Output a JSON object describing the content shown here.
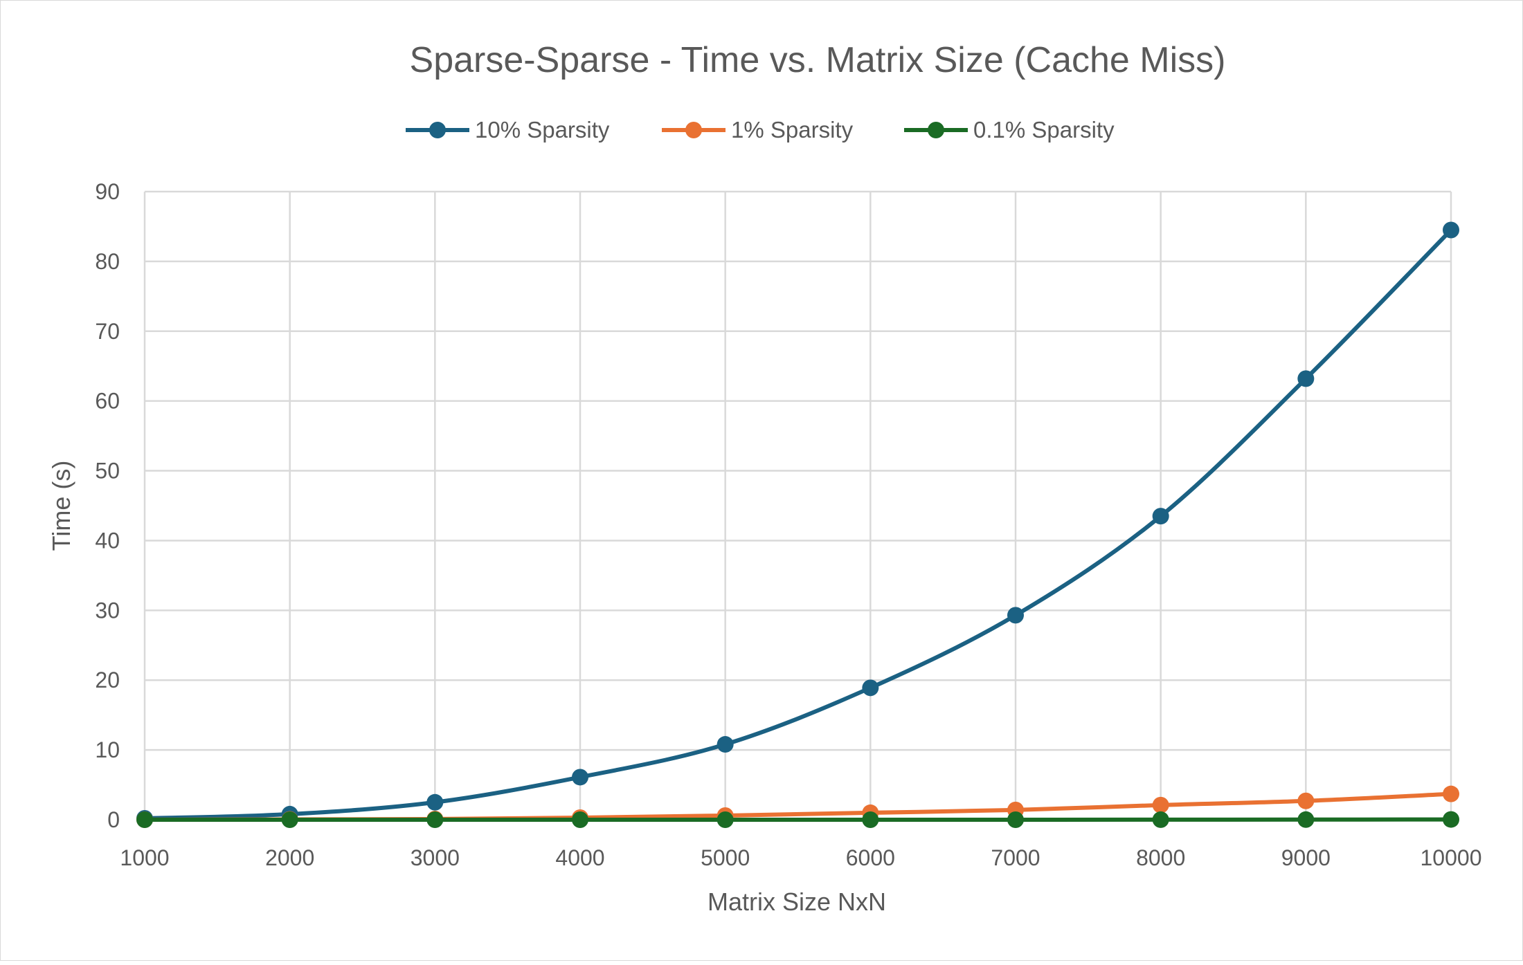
{
  "chart_data": {
    "type": "line",
    "title": "Sparse-Sparse - Time vs. Matrix Size (Cache Miss)",
    "xlabel": "Matrix Size NxN",
    "ylabel": "Time (s)",
    "x": [
      1000,
      2000,
      3000,
      4000,
      5000,
      6000,
      7000,
      8000,
      9000,
      10000
    ],
    "xlim": [
      1000,
      10000
    ],
    "ylim": [
      0,
      90
    ],
    "yticks": [
      0,
      10,
      20,
      30,
      40,
      50,
      60,
      70,
      80,
      90
    ],
    "grid": true,
    "smooth": true,
    "legend_position": "top",
    "series": [
      {
        "name": "10% Sparsity",
        "color": "#1b6183",
        "values": [
          0.2,
          0.8,
          2.5,
          6.1,
          10.8,
          18.9,
          29.3,
          43.5,
          63.2,
          84.5
        ]
      },
      {
        "name": "1% Sparsity",
        "color": "#e97132",
        "values": [
          0.01,
          0.05,
          0.1,
          0.3,
          0.6,
          1.0,
          1.4,
          2.1,
          2.7,
          3.7
        ]
      },
      {
        "name": "0.1% Sparsity",
        "color": "#1a6b24",
        "values": [
          0.0,
          0.0,
          0.0,
          0.0,
          0.0,
          0.0,
          0.0,
          0.01,
          0.02,
          0.04
        ]
      }
    ]
  }
}
